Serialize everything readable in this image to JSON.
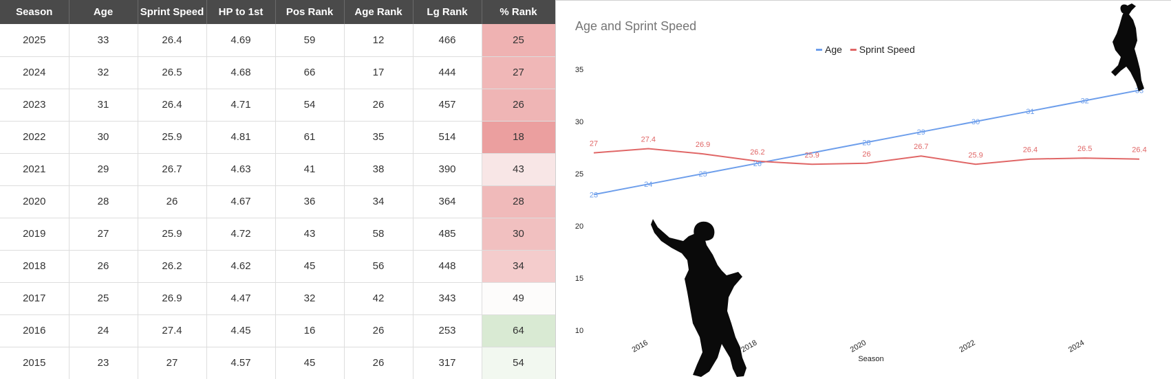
{
  "table": {
    "headers": [
      "Season",
      "Age",
      "Sprint Speed",
      "HP to 1st",
      "Pos Rank",
      "Age Rank",
      "Lg Rank",
      "% Rank"
    ],
    "rows": [
      {
        "cells": [
          "2025",
          "33",
          "26.4",
          "4.69",
          "59",
          "12",
          "466",
          "25"
        ],
        "pct_color": "#efb2b2"
      },
      {
        "cells": [
          "2024",
          "32",
          "26.5",
          "4.68",
          "66",
          "17",
          "444",
          "27"
        ],
        "pct_color": "#f0b7b7"
      },
      {
        "cells": [
          "2023",
          "31",
          "26.4",
          "4.71",
          "54",
          "26",
          "457",
          "26"
        ],
        "pct_color": "#efb5b5"
      },
      {
        "cells": [
          "2022",
          "30",
          "25.9",
          "4.81",
          "61",
          "35",
          "514",
          "18"
        ],
        "pct_color": "#eb9f9f"
      },
      {
        "cells": [
          "2021",
          "29",
          "26.7",
          "4.63",
          "41",
          "38",
          "390",
          "43"
        ],
        "pct_color": "#f8e6e6"
      },
      {
        "cells": [
          "2020",
          "28",
          "26",
          "4.67",
          "36",
          "34",
          "364",
          "28"
        ],
        "pct_color": "#f0baba"
      },
      {
        "cells": [
          "2019",
          "27",
          "25.9",
          "4.72",
          "43",
          "58",
          "485",
          "30"
        ],
        "pct_color": "#f1c0c0"
      },
      {
        "cells": [
          "2018",
          "26",
          "26.2",
          "4.62",
          "45",
          "56",
          "448",
          "34"
        ],
        "pct_color": "#f4cccc"
      },
      {
        "cells": [
          "2017",
          "25",
          "26.9",
          "4.47",
          "32",
          "42",
          "343",
          "49"
        ],
        "pct_color": "#fdfcfb"
      },
      {
        "cells": [
          "2016",
          "24",
          "27.4",
          "4.45",
          "16",
          "26",
          "253",
          "64"
        ],
        "pct_color": "#d9ead3"
      },
      {
        "cells": [
          "2015",
          "23",
          "27",
          "4.57",
          "45",
          "26",
          "317",
          "54"
        ],
        "pct_color": "#f2f8f0"
      }
    ]
  },
  "chart_data": {
    "type": "line",
    "title": "Age and Sprint Speed",
    "xlabel": "Season",
    "ylabel": "",
    "x": [
      2015,
      2016,
      2017,
      2018,
      2019,
      2020,
      2021,
      2022,
      2023,
      2024,
      2025
    ],
    "x_ticks": [
      "2016",
      "2018",
      "2020",
      "2022",
      "2024"
    ],
    "y_ticks": [
      "10",
      "15",
      "20",
      "25",
      "30",
      "35"
    ],
    "ylim": [
      10,
      35
    ],
    "grid": false,
    "legend": "top",
    "series": [
      {
        "name": "Age",
        "color": "#6d9eeb",
        "values": [
          23,
          24,
          25,
          26,
          27,
          28,
          29,
          30,
          31,
          32,
          33
        ],
        "labels": [
          "23",
          "24",
          "25",
          "26",
          "",
          "28",
          "29",
          "30",
          "31",
          "32",
          "33"
        ]
      },
      {
        "name": "Sprint Speed",
        "color": "#e06666",
        "values": [
          27,
          27.4,
          26.9,
          26.2,
          25.9,
          26,
          26.7,
          25.9,
          26.4,
          26.5,
          26.4
        ],
        "labels": [
          "27",
          "27.4",
          "26.9",
          "26.2",
          "25.9",
          "26",
          "26.7",
          "25.9",
          "26.4",
          "26.5",
          "26.4"
        ]
      }
    ]
  }
}
